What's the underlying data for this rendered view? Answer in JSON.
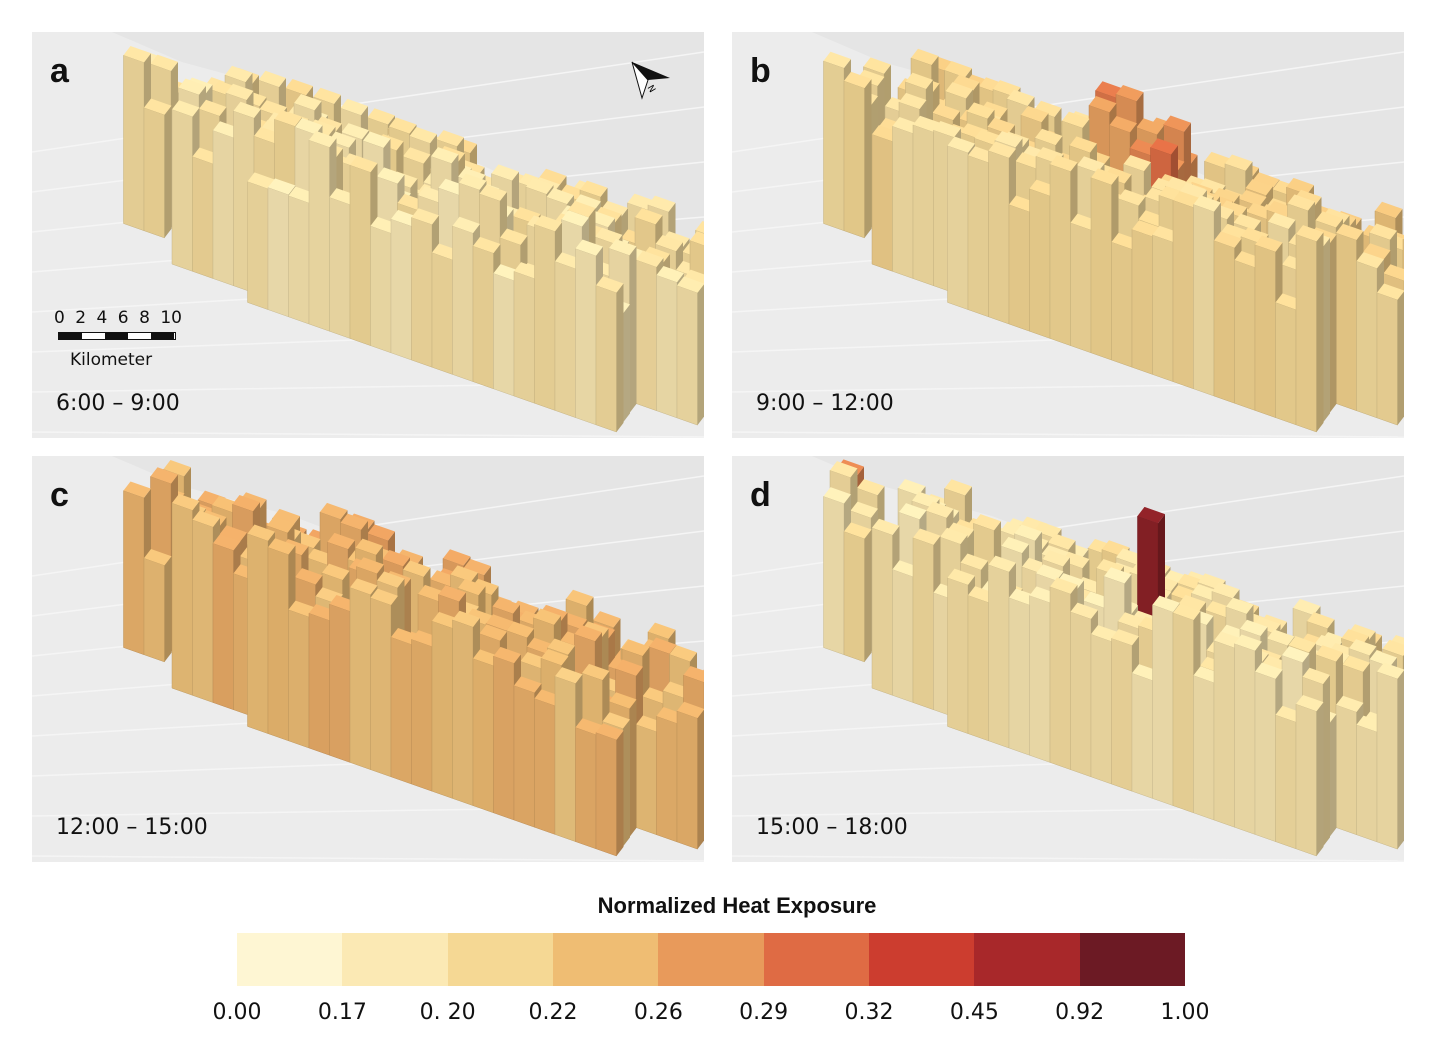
{
  "panels": [
    {
      "letter": "a",
      "time": "6:00 – 9:00",
      "level": 0.2,
      "hot": 0
    },
    {
      "letter": "b",
      "time": "9:00 – 12:00",
      "level": 0.26,
      "hot": 1
    },
    {
      "letter": "c",
      "time": "12:00 – 15:00",
      "level": 0.4,
      "hot": 0
    },
    {
      "letter": "d",
      "time": "15:00 – 18:00",
      "level": 0.19,
      "hot": 2
    }
  ],
  "scalebar": {
    "ticks": [
      "0",
      "2",
      "4",
      "6",
      "8",
      "10"
    ],
    "unit": "Kilometer"
  },
  "legend": {
    "title": "Normalized Heat Exposure",
    "colors": [
      "#fef6d3",
      "#fbe9b4",
      "#f5d894",
      "#efbd73",
      "#e89a5b",
      "#df6b44",
      "#cc3d2f",
      "#a8282a",
      "#6c1a24"
    ],
    "ticks": [
      "0.00",
      "0.17",
      "0. 20",
      "0.22",
      "0.26",
      "0.29",
      "0.32",
      "0.45",
      "0.92",
      "1.00"
    ]
  },
  "colors": {
    "map_background": "#ececec",
    "water": "#dddddd"
  },
  "icons": {
    "north_arrow": "north-arrow-icon"
  }
}
